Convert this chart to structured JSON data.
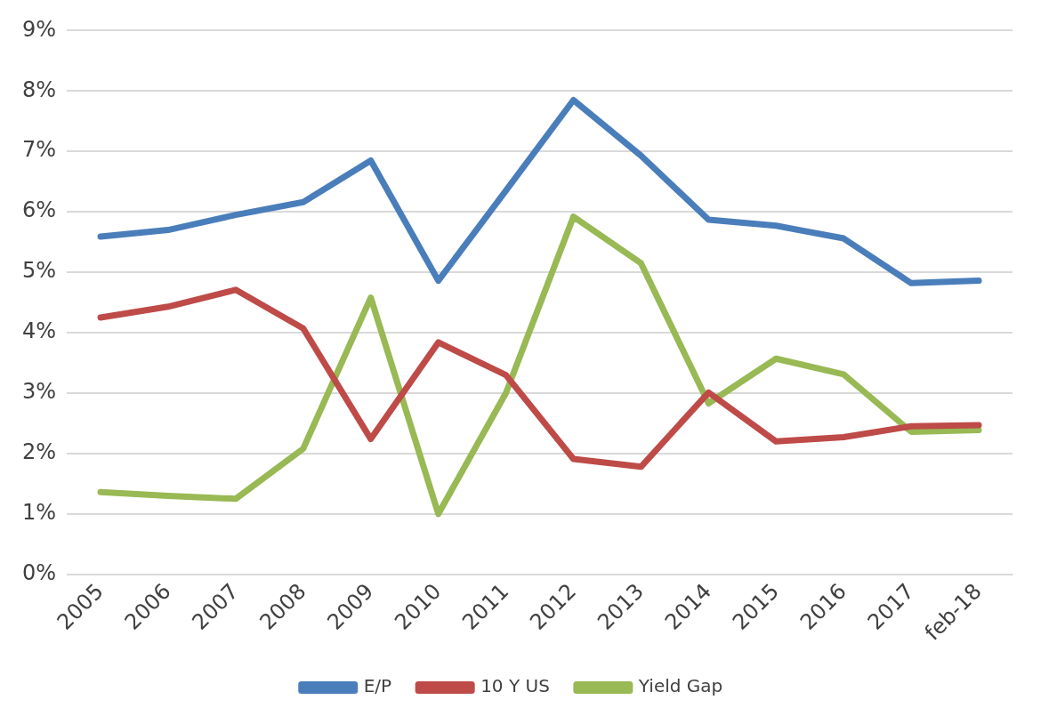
{
  "chart_data": {
    "type": "line",
    "categories": [
      "2005",
      "2006",
      "2007",
      "2008",
      "2009",
      "2010",
      "2011",
      "2012",
      "2013",
      "2014",
      "2015",
      "2016",
      "2017",
      "feb-18"
    ],
    "series": [
      {
        "name": "E/P",
        "color": "#4a7ebb",
        "values": [
          5.59,
          5.7,
          5.95,
          6.16,
          6.85,
          4.86,
          6.35,
          7.85,
          6.93,
          5.87,
          5.77,
          5.56,
          4.82,
          4.86
        ]
      },
      {
        "name": "10 Y US",
        "color": "#be4b48",
        "values": [
          4.25,
          4.43,
          4.71,
          4.07,
          2.24,
          3.84,
          3.3,
          1.91,
          1.78,
          3.01,
          2.2,
          2.27,
          2.45,
          2.47
        ]
      },
      {
        "name": "Yield Gap",
        "color": "#98b954",
        "values": [
          1.36,
          1.3,
          1.25,
          2.08,
          4.58,
          1.0,
          3.0,
          5.92,
          5.15,
          2.83,
          3.57,
          3.31,
          2.36,
          2.39
        ]
      }
    ],
    "ylim": [
      0,
      9
    ],
    "yticks": [
      {
        "value": 0,
        "label": "0%"
      },
      {
        "value": 1,
        "label": "1%"
      },
      {
        "value": 2,
        "label": "2%"
      },
      {
        "value": 3,
        "label": "3%"
      },
      {
        "value": 4,
        "label": "4%"
      },
      {
        "value": 5,
        "label": "5%"
      },
      {
        "value": 6,
        "label": "6%"
      },
      {
        "value": 7,
        "label": "7%"
      },
      {
        "value": 8,
        "label": "8%"
      },
      {
        "value": 9,
        "label": "9%"
      }
    ],
    "grid": "y",
    "legend": "bottom",
    "marker": "none",
    "line_style": "solid"
  }
}
